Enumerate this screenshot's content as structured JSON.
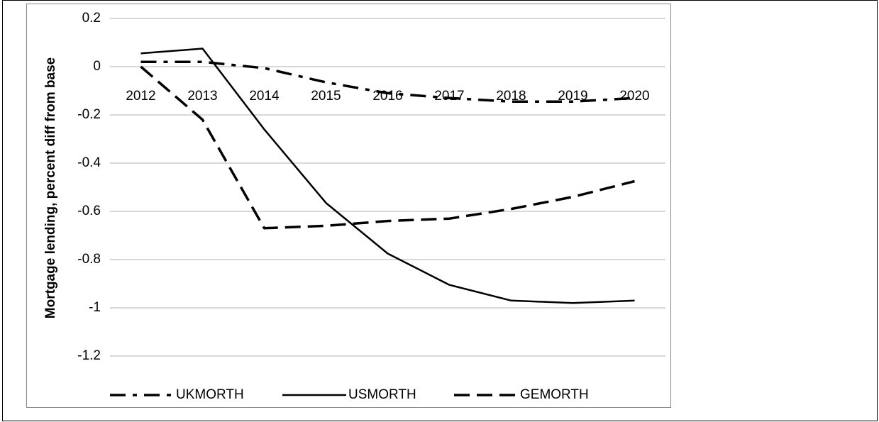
{
  "chart_data": {
    "type": "line",
    "y_label": "Mortgage lending, percent diff from base",
    "categories": [
      "2012",
      "2013",
      "2014",
      "2015",
      "2016",
      "2017",
      "2018",
      "2019",
      "2020"
    ],
    "series": [
      {
        "name": "UKMORTH",
        "color": "#000000",
        "line_style": "dash-dot",
        "values": [
          0.02,
          0.02,
          -0.006,
          -0.065,
          -0.11,
          -0.13,
          -0.145,
          -0.145,
          -0.13
        ]
      },
      {
        "name": "USMORTH",
        "color": "#000000",
        "line_style": "solid",
        "values": [
          0.055,
          0.075,
          -0.26,
          -0.565,
          -0.775,
          -0.905,
          -0.97,
          -0.98,
          -0.97
        ]
      },
      {
        "name": "GEMORTH",
        "color": "#000000",
        "line_style": "dash",
        "values": [
          0.0,
          -0.22,
          -0.67,
          -0.66,
          -0.64,
          -0.63,
          -0.59,
          -0.54,
          -0.475
        ]
      }
    ],
    "ylim": [
      -1.2,
      0.2
    ],
    "yticks": [
      0.2,
      0,
      -0.2,
      -0.4,
      -0.6,
      -0.8,
      -1,
      -1.2
    ],
    "grid": true,
    "legend": "bottom"
  }
}
